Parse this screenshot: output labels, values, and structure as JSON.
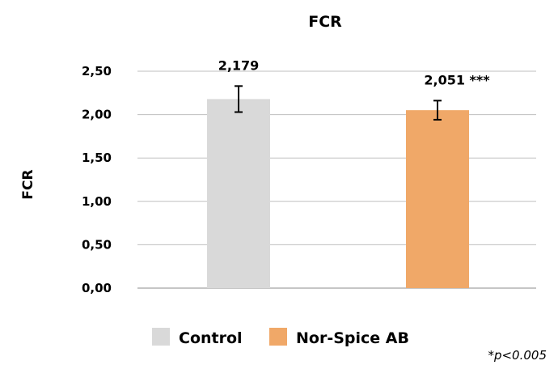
{
  "chart_data": {
    "type": "bar",
    "title": "FCR",
    "xlabel": "",
    "ylabel": "FCR",
    "ylim": [
      0,
      2.5
    ],
    "yticks": [
      "0,00",
      "0,50",
      "1,00",
      "1,50",
      "2,00",
      "2,50"
    ],
    "grid": true,
    "legend_position": "bottom",
    "categories": [
      "Control",
      "Nor-Spice AB"
    ],
    "values": [
      2.179,
      2.051
    ],
    "error": [
      0.15,
      0.11
    ],
    "data_labels": [
      "2,179",
      "2,051 ***"
    ],
    "colors": [
      "#d9d9d9",
      "#f0a868"
    ],
    "legend": [
      "Control",
      "Nor-Spice AB"
    ],
    "footnote": "*p<0.005"
  }
}
